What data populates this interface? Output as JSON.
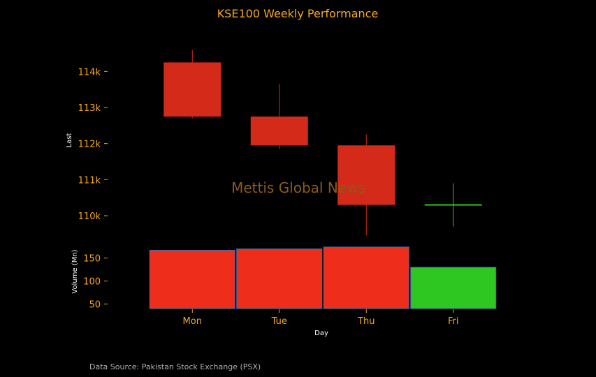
{
  "chart_data": {
    "type": "candlestick",
    "title": "KSE100 Weekly Performance",
    "categories": [
      "Mon",
      "Tue",
      "Thu",
      "Fri"
    ],
    "price": {
      "ylabel": "Last",
      "ylim": [
        109400,
        115400
      ],
      "ticks": [
        110000,
        111000,
        112000,
        113000,
        114000
      ],
      "tick_labels": [
        "110k",
        "111k",
        "112k",
        "113k",
        "114k"
      ],
      "candles": [
        {
          "day": "Mon",
          "open": 114250,
          "close": 112750,
          "high": 114600,
          "low": 112700,
          "color": "#d42a1a"
        },
        {
          "day": "Tue",
          "open": 112750,
          "close": 111950,
          "high": 113650,
          "low": 111850,
          "color": "#d42a1a"
        },
        {
          "day": "Thu",
          "open": 111950,
          "close": 110300,
          "high": 112250,
          "low": 109450,
          "color": "#d42a1a"
        },
        {
          "day": "Fri",
          "open": 110300,
          "close": 110300,
          "high": 110900,
          "low": 109700,
          "color": "#2ecc1f"
        }
      ]
    },
    "volume": {
      "ylabel": "Volume (Mn)",
      "ylim": [
        40,
        192
      ],
      "ticks": [
        50,
        100,
        150
      ],
      "tick_labels": [
        "50",
        "100",
        "150"
      ],
      "values": [
        167,
        170,
        174,
        130
      ],
      "colors": [
        "#ee2e1b",
        "#ee2e1b",
        "#ee2e1b",
        "#2ec721"
      ]
    },
    "xlabel": "Day",
    "watermark": "Mettis Global News",
    "source_note": "Data Source: Pakistan Stock Exchange (PSX)",
    "colors": {
      "background": "#000000",
      "text_accent": "#f5a623",
      "down": "#d42a1a",
      "up": "#2ecc1f",
      "bar_border": "#3a6fb0"
    }
  }
}
